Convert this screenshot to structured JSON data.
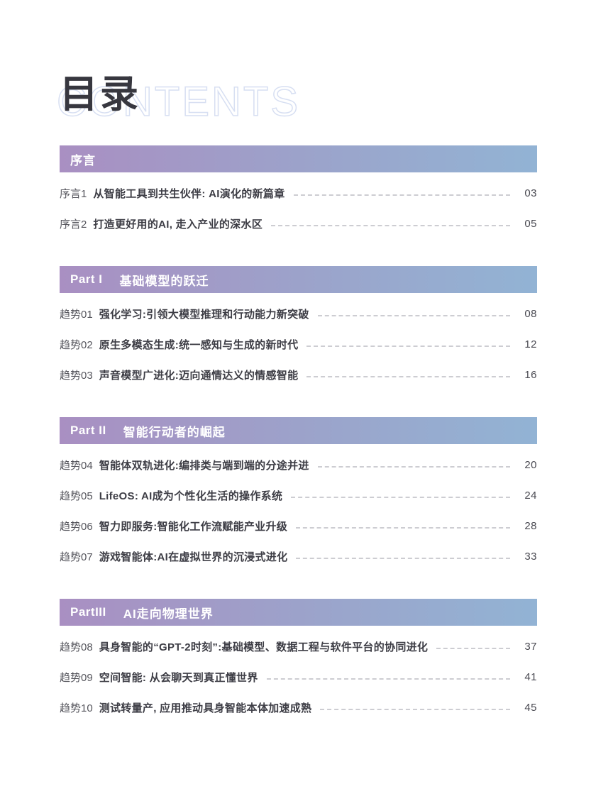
{
  "page": {
    "title": "目录",
    "subtitle": "CONTENTS"
  },
  "colors": {
    "bar_gradient_left": "#a98fc2",
    "bar_gradient_right": "#92b3d4",
    "bar_text": "#ffffff",
    "title_text": "#37373f",
    "subtitle_outline": "#d7dff2",
    "entry_title_text": "#3d3d45",
    "entry_prefix_text": "#55555c",
    "page_number_text": "#4a4a52",
    "leader_dash": "#cdcdd2",
    "background": "#ffffff"
  },
  "sections": [
    {
      "part": "",
      "name": "序言",
      "entries": [
        {
          "prefix": "序言1",
          "title": "从智能工具到共生伙伴: AI演化的新篇章",
          "page": "03"
        },
        {
          "prefix": "序言2",
          "title": "打造更好用的AI, 走入产业的深水区",
          "page": "05"
        }
      ]
    },
    {
      "part": "Part I",
      "name": "基础模型的跃迁",
      "entries": [
        {
          "prefix": "趋势01",
          "title": "强化学习:引领大模型推理和行动能力新突破",
          "page": "08"
        },
        {
          "prefix": "趋势02",
          "title": "原生多模态生成:统一感知与生成的新时代",
          "page": "12"
        },
        {
          "prefix": "趋势03",
          "title": "声音模型广进化:迈向通情达义的情感智能",
          "page": "16"
        }
      ]
    },
    {
      "part": "Part II",
      "name": "智能行动者的崛起",
      "entries": [
        {
          "prefix": "趋势04",
          "title": "智能体双轨进化:编排类与端到端的分途并进",
          "page": "20"
        },
        {
          "prefix": "趋势05",
          "title": "LifeOS: AI成为个性化生活的操作系统",
          "page": "24"
        },
        {
          "prefix": "趋势06",
          "title": "智力即服务:智能化工作流赋能产业升级",
          "page": "28"
        },
        {
          "prefix": "趋势07",
          "title": "游戏智能体:AI在虚拟世界的沉浸式进化",
          "page": "33"
        }
      ]
    },
    {
      "part": "PartIII",
      "name": "AI走向物理世界",
      "entries": [
        {
          "prefix": "趋势08",
          "title": "具身智能的“GPT-2时刻”:基础模型、数据工程与软件平台的协同进化",
          "page": "37"
        },
        {
          "prefix": "趋势09",
          "title": "空间智能: 从会聊天到真正懂世界",
          "page": "41"
        },
        {
          "prefix": "趋势10",
          "title": "测试转量产, 应用推动具身智能本体加速成熟",
          "page": "45"
        }
      ]
    }
  ]
}
